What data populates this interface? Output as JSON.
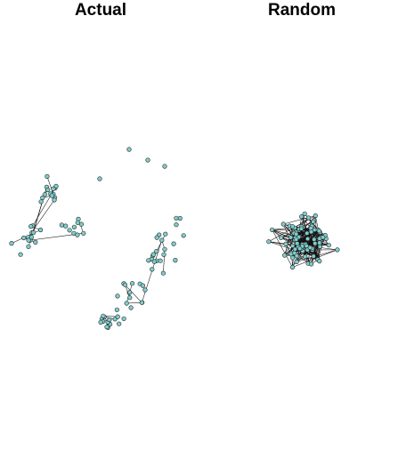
{
  "panels": [
    {
      "title": "Actual",
      "layout": "clustered-network"
    },
    {
      "title": "Random",
      "layout": "dense-random-network"
    }
  ],
  "style": {
    "node_fill": "#7fcccc",
    "node_stroke": "#222222",
    "edge_color": "#111111",
    "background": "#ffffff"
  }
}
